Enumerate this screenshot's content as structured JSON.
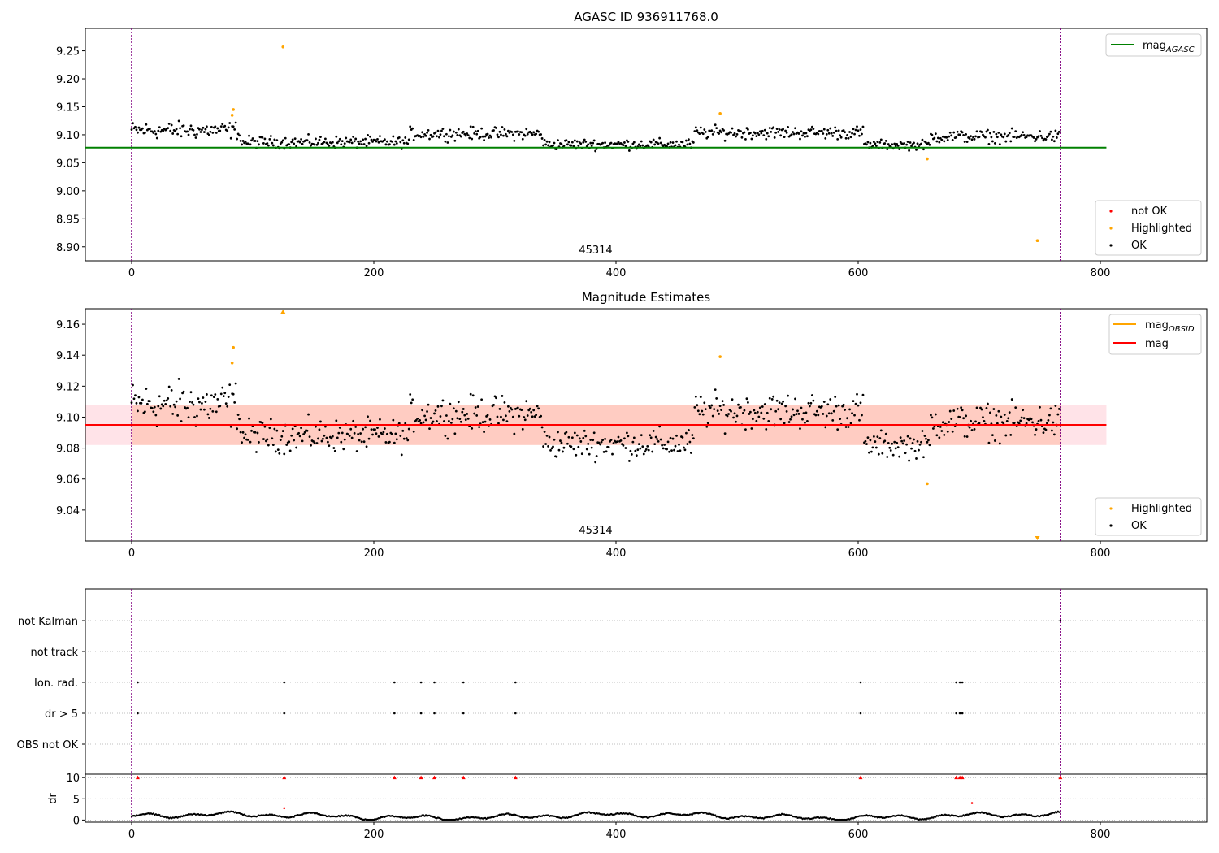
{
  "chart_data": [
    {
      "type": "scatter",
      "title": "AGASC ID 936911768.0",
      "xlim": [
        -40,
        890
      ],
      "ylim": [
        8.875,
        9.29
      ],
      "xticks": [
        "0",
        "200",
        "400",
        "600",
        "800"
      ],
      "yticks": [
        "8.90",
        "8.95",
        "9.00",
        "9.05",
        "9.10",
        "9.15",
        "9.20",
        "9.25"
      ],
      "vlines": [
        0,
        767
      ],
      "obsid_label": "45314",
      "hline": {
        "name": "mag_AGASC",
        "value": 9.077,
        "x_range": [
          -40,
          805
        ],
        "color": "#008000"
      },
      "legend_upper": [
        {
          "label": "mag",
          "sub": "AGASC",
          "color": "#008000"
        }
      ],
      "legend_lower": [
        {
          "label": "not OK",
          "color": "#ff0000"
        },
        {
          "label": "Highlighted",
          "color": "#ffa500"
        },
        {
          "label": "OK",
          "color": "#000000"
        }
      ],
      "highlighted": [
        [
          83,
          9.135
        ],
        [
          84,
          9.145
        ],
        [
          125,
          9.257
        ],
        [
          486,
          9.138
        ],
        [
          657,
          9.057
        ],
        [
          748,
          8.911
        ]
      ],
      "ok_series_segments": [
        {
          "x": [
            0,
            90
          ],
          "mean": 9.108,
          "spread": 0.016
        },
        {
          "x": [
            90,
            230
          ],
          "mean": 9.087,
          "spread": 0.011
        },
        {
          "x": [
            230,
            340
          ],
          "mean": 9.102,
          "spread": 0.012
        },
        {
          "x": [
            340,
            465
          ],
          "mean": 9.083,
          "spread": 0.01
        },
        {
          "x": [
            465,
            605
          ],
          "mean": 9.104,
          "spread": 0.012
        },
        {
          "x": [
            605,
            660
          ],
          "mean": 9.082,
          "spread": 0.009
        },
        {
          "x": [
            660,
            767
          ],
          "mean": 9.097,
          "spread": 0.012
        }
      ]
    },
    {
      "type": "scatter",
      "title": "Magnitude Estimates",
      "xlim": [
        -40,
        890
      ],
      "ylim": [
        9.02,
        9.17
      ],
      "xticks": [
        "0",
        "200",
        "400",
        "600",
        "800"
      ],
      "yticks": [
        "9.04",
        "9.06",
        "9.08",
        "9.10",
        "9.12",
        "9.14",
        "9.16"
      ],
      "vlines": [
        0,
        767
      ],
      "obsid_label": "45314",
      "mag_line": {
        "name": "mag",
        "value": 9.095,
        "x_range": [
          -40,
          805
        ],
        "color": "#ff0000"
      },
      "mag_band": {
        "low": 9.082,
        "high": 9.108,
        "x_range": [
          -40,
          805
        ]
      },
      "legend_upper": [
        {
          "label": "mag",
          "sub": "OBSID",
          "color": "#ffa500"
        },
        {
          "label": "mag",
          "sub": "",
          "color": "#ff0000"
        }
      ],
      "legend_lower": [
        {
          "label": "Highlighted",
          "color": "#ffa500"
        },
        {
          "label": "OK",
          "color": "#000000"
        }
      ],
      "highlighted": [
        [
          83,
          9.135
        ],
        [
          84,
          9.145
        ],
        [
          486,
          9.139
        ],
        [
          657,
          9.057
        ]
      ],
      "off_scale": [
        {
          "x": 125,
          "dir": "up"
        },
        {
          "x": 748,
          "dir": "down"
        }
      ],
      "ok_series_segments": [
        {
          "x": [
            0,
            90
          ],
          "mean": 9.108,
          "spread": 0.016
        },
        {
          "x": [
            90,
            230
          ],
          "mean": 9.088,
          "spread": 0.011
        },
        {
          "x": [
            230,
            340
          ],
          "mean": 9.102,
          "spread": 0.012
        },
        {
          "x": [
            340,
            465
          ],
          "mean": 9.083,
          "spread": 0.01
        },
        {
          "x": [
            465,
            605
          ],
          "mean": 9.104,
          "spread": 0.012
        },
        {
          "x": [
            605,
            660
          ],
          "mean": 9.082,
          "spread": 0.009
        },
        {
          "x": [
            660,
            767
          ],
          "mean": 9.097,
          "spread": 0.012
        }
      ]
    },
    {
      "type": "scatter",
      "title": "",
      "xlim": [
        -40,
        890
      ],
      "xticks": [
        "0",
        "200",
        "400",
        "600",
        "800"
      ],
      "vlines": [
        0,
        767
      ],
      "flag_rows": [
        "not Kalman",
        "not track",
        "Ion. rad.",
        "dr > 5",
        "OBS not OK"
      ],
      "flag_points": {
        "not Kalman": [
          767
        ],
        "not track": [],
        "Ion. rad.": [
          5,
          126,
          217,
          239,
          250,
          274,
          317,
          602,
          681,
          684,
          686
        ],
        "dr > 5": [
          5,
          126,
          217,
          239,
          250,
          274,
          317,
          602,
          681,
          684,
          686
        ],
        "OBS not OK": []
      },
      "dr_panel": {
        "ylabel": "dr",
        "yticks": [
          "0",
          "5",
          "10"
        ],
        "ylim": [
          -0.5,
          10.8
        ],
        "clipped_at_10": [
          5,
          126,
          217,
          239,
          250,
          274,
          317,
          602,
          681,
          684,
          686,
          767
        ],
        "outliers": [
          [
            126,
            2.8
          ],
          [
            694,
            4.0
          ]
        ]
      }
    }
  ]
}
